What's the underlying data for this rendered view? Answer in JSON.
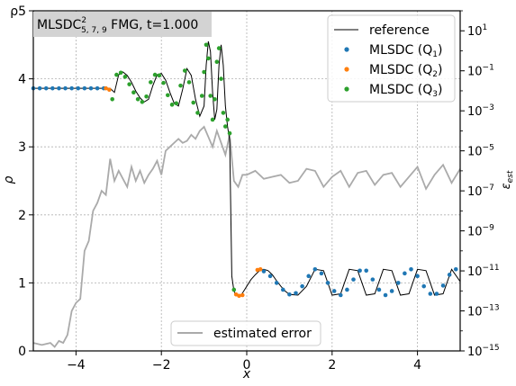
{
  "chart_data": {
    "type": "line",
    "title_box": {
      "text": "MLSDC",
      "sub": "5, 7, 9",
      "sup": "2",
      "suffix": " FMG, t=1.000"
    },
    "xlabel": "x",
    "ylabel": "ρ",
    "y2label_main": "ε",
    "y2label_sub": "est",
    "xlim": [
      -5,
      5
    ],
    "ylim": [
      0,
      5
    ],
    "y2lim_exp": [
      -15,
      2
    ],
    "y2_scale": "log",
    "grid": true,
    "x_ticks": [
      {
        "value": -4,
        "label": "−4"
      },
      {
        "value": -2,
        "label": "−2"
      },
      {
        "value": 0,
        "label": "0"
      },
      {
        "value": 2,
        "label": "2"
      },
      {
        "value": 4,
        "label": "4"
      }
    ],
    "y_ticks": [
      {
        "value": 0,
        "label": "0"
      },
      {
        "value": 1,
        "label": "1"
      },
      {
        "value": 2,
        "label": "2"
      },
      {
        "value": 3,
        "label": "3"
      },
      {
        "value": 4,
        "label": "4"
      },
      {
        "value": 5,
        "label": "ρ5"
      }
    ],
    "y2_ticks": [
      {
        "exp": 1,
        "label": "1"
      },
      {
        "exp": -1,
        "label": "−1"
      },
      {
        "exp": -3,
        "label": "−3"
      },
      {
        "exp": -5,
        "label": "−5"
      },
      {
        "exp": -7,
        "label": "−7"
      },
      {
        "exp": -9,
        "label": "−9"
      },
      {
        "exp": -11,
        "label": "−11"
      },
      {
        "exp": -13,
        "label": "−13"
      },
      {
        "exp": -15,
        "label": "−15"
      }
    ],
    "legend_upper": {
      "placement": "top-right",
      "entries": [
        {
          "label": "reference",
          "kind": "line",
          "color": "#000000"
        },
        {
          "label": "MLSDC (Q",
          "sub": "1",
          "close": ")",
          "kind": "dot",
          "color": "#1f77b4"
        },
        {
          "label": "MLSDC (Q",
          "sub": "2",
          "close": ")",
          "kind": "dot",
          "color": "#ff7f0e"
        },
        {
          "label": "MLSDC (Q",
          "sub": "3",
          "close": ")",
          "kind": "dot",
          "color": "#2ca02c"
        }
      ]
    },
    "legend_lower": {
      "placement": "bottom-center",
      "entries": [
        {
          "label": "estimated error",
          "kind": "line",
          "color": "#aaaaaa"
        }
      ]
    },
    "series": [
      {
        "name": "reference",
        "color": "#000000",
        "role": "reference",
        "x": [
          -5.0,
          -3.2,
          -3.1,
          -3.0,
          -2.9,
          -2.8,
          -2.7,
          -2.6,
          -2.5,
          -2.4,
          -2.3,
          -2.2,
          -2.1,
          -2.0,
          -1.9,
          -1.8,
          -1.7,
          -1.6,
          -1.5,
          -1.4,
          -1.3,
          -1.2,
          -1.1,
          -1.0,
          -0.95,
          -0.9,
          -0.85,
          -0.8,
          -0.75,
          -0.7,
          -0.65,
          -0.6,
          -0.55,
          -0.5,
          -0.45,
          -0.4,
          -0.35,
          -0.3,
          -0.25,
          -0.2,
          -0.15,
          -0.1,
          -0.05,
          0.0,
          0.1,
          0.2,
          0.3,
          0.4,
          0.5,
          0.6,
          0.7,
          0.8,
          0.9,
          1.0,
          1.2,
          1.4,
          1.6,
          1.8,
          2.0,
          2.2,
          2.4,
          2.6,
          2.8,
          3.0,
          3.2,
          3.4,
          3.6,
          3.8,
          4.0,
          4.2,
          4.4,
          4.6,
          4.8,
          5.0
        ],
        "y": [
          3.86,
          3.86,
          3.8,
          4.06,
          4.1,
          4.05,
          3.95,
          3.82,
          3.72,
          3.66,
          3.7,
          3.9,
          4.06,
          4.08,
          3.98,
          3.8,
          3.64,
          3.6,
          3.85,
          4.15,
          4.05,
          3.7,
          3.45,
          3.6,
          4.2,
          4.55,
          4.4,
          3.8,
          3.4,
          3.55,
          4.2,
          4.5,
          4.2,
          3.6,
          3.3,
          3.1,
          1.1,
          0.88,
          0.82,
          0.81,
          0.82,
          0.85,
          0.9,
          0.95,
          1.05,
          1.12,
          1.18,
          1.2,
          1.18,
          1.12,
          1.03,
          0.95,
          0.88,
          0.83,
          0.82,
          0.95,
          1.2,
          1.18,
          0.82,
          0.84,
          1.2,
          1.18,
          0.82,
          0.84,
          1.2,
          1.18,
          0.82,
          0.84,
          1.2,
          1.18,
          0.82,
          0.84,
          1.2,
          1.02
        ]
      },
      {
        "name": "MLSDC (Q1)",
        "color": "#1f77b4",
        "role": "dots",
        "x": [
          -5.0,
          -4.85,
          -4.7,
          -4.55,
          -4.4,
          -4.25,
          -4.1,
          -3.95,
          -3.8,
          -3.65,
          -3.5,
          -3.35,
          0.4,
          0.55,
          0.7,
          0.85,
          1.0,
          1.15,
          1.3,
          1.45,
          1.6,
          1.75,
          1.9,
          2.05,
          2.2,
          2.35,
          2.5,
          2.65,
          2.8,
          2.95,
          3.1,
          3.25,
          3.4,
          3.55,
          3.7,
          3.85,
          4.0,
          4.15,
          4.3,
          4.45,
          4.6,
          4.75,
          4.9
        ],
        "y": [
          3.86,
          3.86,
          3.86,
          3.86,
          3.86,
          3.86,
          3.86,
          3.86,
          3.86,
          3.86,
          3.86,
          3.86,
          1.17,
          1.1,
          1.0,
          0.9,
          0.83,
          0.85,
          0.95,
          1.1,
          1.2,
          1.14,
          1.0,
          0.88,
          0.82,
          0.9,
          1.05,
          1.18,
          1.18,
          1.05,
          0.9,
          0.82,
          0.88,
          1.0,
          1.14,
          1.2,
          1.1,
          0.95,
          0.84,
          0.84,
          0.96,
          1.12,
          1.2
        ]
      },
      {
        "name": "MLSDC (Q2)",
        "color": "#ff7f0e",
        "role": "dots",
        "x": [
          -3.3,
          -3.22,
          -0.25,
          -0.18,
          -0.1,
          0.25,
          0.32
        ],
        "y": [
          3.86,
          3.84,
          0.83,
          0.81,
          0.82,
          1.19,
          1.2
        ]
      },
      {
        "name": "MLSDC (Q3)",
        "color": "#2ca02c",
        "role": "dots",
        "x": [
          -3.15,
          -3.05,
          -2.95,
          -2.85,
          -2.75,
          -2.65,
          -2.55,
          -2.45,
          -2.35,
          -2.25,
          -2.15,
          -2.05,
          -1.95,
          -1.85,
          -1.75,
          -1.65,
          -1.55,
          -1.45,
          -1.35,
          -1.25,
          -1.15,
          -1.05,
          -1.0,
          -0.95,
          -0.9,
          -0.85,
          -0.8,
          -0.75,
          -0.7,
          -0.65,
          -0.6,
          -0.55,
          -0.5,
          -0.45,
          -0.4,
          -0.3
        ],
        "y": [
          3.7,
          4.06,
          4.09,
          4.03,
          3.92,
          3.8,
          3.7,
          3.66,
          3.74,
          3.95,
          4.06,
          4.05,
          3.94,
          3.76,
          3.62,
          3.64,
          3.9,
          4.12,
          3.95,
          3.65,
          3.5,
          3.75,
          4.1,
          4.5,
          4.3,
          3.75,
          3.4,
          3.7,
          4.25,
          4.45,
          4.0,
          3.5,
          3.3,
          3.4,
          3.2,
          0.9
        ]
      },
      {
        "name": "estimated error",
        "color": "#aaaaaa",
        "role": "error",
        "x": [
          -5.0,
          -4.8,
          -4.6,
          -4.5,
          -4.4,
          -4.3,
          -4.2,
          -4.1,
          -4.0,
          -3.9,
          -3.8,
          -3.7,
          -3.6,
          -3.5,
          -3.4,
          -3.3,
          -3.2,
          -3.1,
          -3.0,
          -2.9,
          -2.8,
          -2.7,
          -2.6,
          -2.5,
          -2.4,
          -2.3,
          -2.2,
          -2.1,
          -2.0,
          -1.9,
          -1.8,
          -1.7,
          -1.6,
          -1.5,
          -1.4,
          -1.3,
          -1.2,
          -1.1,
          -1.0,
          -0.9,
          -0.8,
          -0.7,
          -0.6,
          -0.5,
          -0.4,
          -0.3,
          -0.2,
          -0.1,
          0.0,
          0.2,
          0.4,
          0.6,
          0.8,
          1.0,
          1.2,
          1.4,
          1.6,
          1.8,
          2.0,
          2.2,
          2.4,
          2.6,
          2.8,
          3.0,
          3.2,
          3.4,
          3.6,
          3.8,
          4.0,
          4.2,
          4.4,
          4.6,
          4.8,
          5.0
        ],
        "y": [
          -14.6,
          -14.7,
          -14.6,
          -14.8,
          -14.5,
          -14.6,
          -14.2,
          -13.0,
          -12.6,
          -12.4,
          -10.0,
          -9.5,
          -8.0,
          -7.6,
          -7.0,
          -7.2,
          -5.4,
          -6.5,
          -6.0,
          -6.4,
          -6.8,
          -5.8,
          -6.5,
          -6.0,
          -6.6,
          -6.2,
          -5.9,
          -5.5,
          -6.2,
          -5.0,
          -4.8,
          -4.6,
          -4.4,
          -4.6,
          -4.5,
          -4.2,
          -4.4,
          -4.0,
          -3.8,
          -4.3,
          -4.8,
          -4.0,
          -4.6,
          -5.2,
          -4.2,
          -6.5,
          -6.8,
          -6.2,
          -6.2,
          -6.0,
          -6.4,
          -6.3,
          -6.2,
          -6.6,
          -6.5,
          -5.9,
          -6.0,
          -6.8,
          -6.3,
          -6.0,
          -6.8,
          -6.1,
          -6.0,
          -6.7,
          -6.2,
          -6.1,
          -6.8,
          -6.3,
          -5.8,
          -6.9,
          -6.2,
          -5.7,
          -6.6,
          -5.9
        ]
      }
    ]
  }
}
